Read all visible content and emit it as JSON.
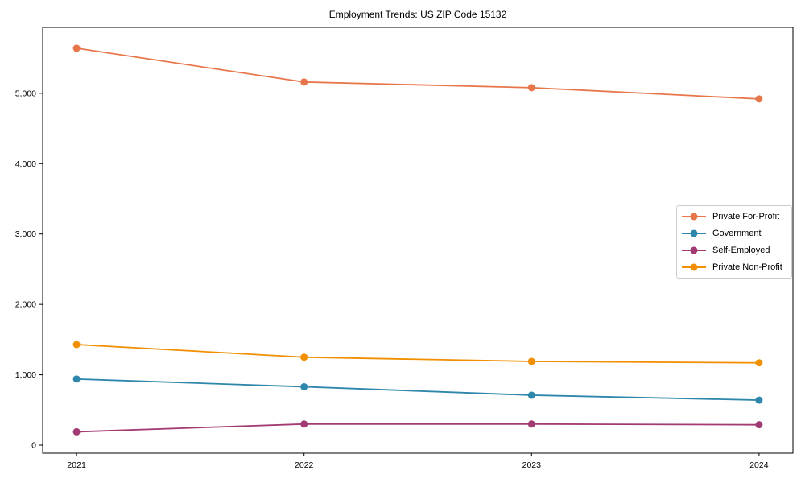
{
  "chart_data": {
    "type": "line",
    "title": "Employment Trends: US ZIP Code 15132",
    "x": [
      2021,
      2022,
      2023,
      2024
    ],
    "x_tick_labels": [
      "2021",
      "2022",
      "2023",
      "2024"
    ],
    "y_ticks": [
      0,
      1000,
      2000,
      3000,
      4000,
      5000
    ],
    "y_tick_labels": [
      "0",
      "1,000",
      "2,000",
      "3,000",
      "4,000",
      "5,000"
    ],
    "xlim": [
      2020.851,
      2024.149
    ],
    "ylim": [
      -114,
      5936
    ],
    "xlabel": "",
    "ylabel": "",
    "grid": false,
    "legend_position": "center-right",
    "axis_color": "#000000",
    "background_color": "#ffffff",
    "series": [
      {
        "name": "Private For-Profit",
        "color": "#E8764B",
        "values": [
          5640,
          5160,
          5080,
          4920
        ]
      },
      {
        "name": "Government",
        "color": "#2E86AB",
        "values": [
          940,
          830,
          710,
          640
        ]
      },
      {
        "name": "Self-Employed",
        "color": "#A23B72",
        "values": [
          190,
          300,
          300,
          290
        ]
      },
      {
        "name": "Private Non-Profit",
        "color": "#F18F01",
        "values": [
          1430,
          1250,
          1190,
          1170
        ]
      }
    ]
  }
}
